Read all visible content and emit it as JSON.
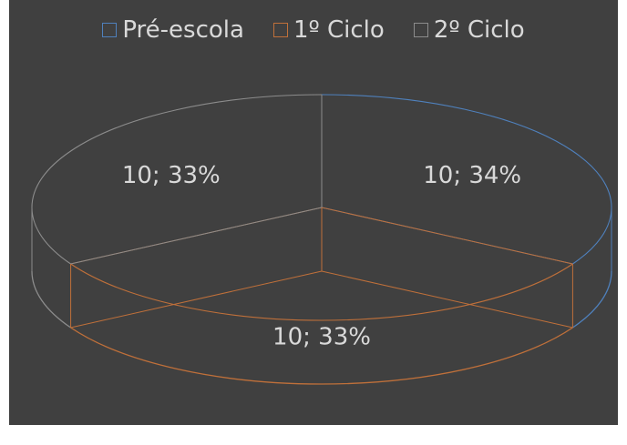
{
  "chart_data": {
    "type": "pie",
    "style": "3d-outline",
    "categories": [
      "Pré-escola",
      "1º Ciclo",
      "2º Ciclo"
    ],
    "values": [
      10,
      10,
      10
    ],
    "percent_labels": [
      "34%",
      "33%",
      "33%"
    ],
    "data_labels": [
      "10; 34%",
      "10; 33%",
      "10; 33%"
    ],
    "legend_position": "top",
    "colors": {
      "background": "#404040",
      "text": "#d9d9d9",
      "Pré-escola": "#4f81bd",
      "1º Ciclo": "#c0703a",
      "2º Ciclo": "#8c8c8c"
    }
  }
}
